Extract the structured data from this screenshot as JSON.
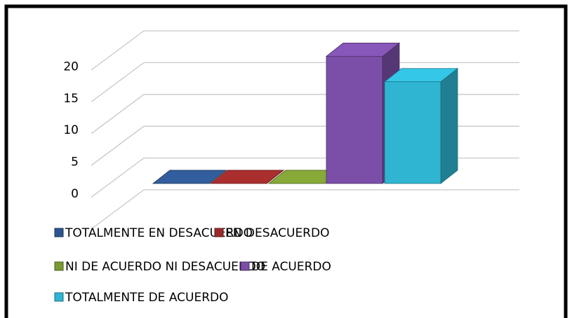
{
  "chart_data": {
    "type": "bar3d",
    "categories": [
      null
    ],
    "series": [
      {
        "name": "TOTALMENTE EN DESACUERDO",
        "color": "#2e5590",
        "values": [
          0
        ]
      },
      {
        "name": "EN DESACUERDO",
        "color": "#9b2a2a",
        "values": [
          0
        ]
      },
      {
        "name": "NI DE ACUERDO NI DESACUERDO",
        "color": "#7a9a32",
        "values": [
          0
        ]
      },
      {
        "name": "DE ACUERDO",
        "color": "#7b4fa8",
        "values": [
          20
        ]
      },
      {
        "name": "TOTALMENTE DE ACUERDO",
        "color": "#2fb5d2",
        "values": [
          16
        ]
      }
    ],
    "ylim": [
      0,
      25
    ],
    "yticks": [
      0,
      5,
      10,
      15,
      20
    ],
    "grid": true,
    "legend": "bottom"
  }
}
